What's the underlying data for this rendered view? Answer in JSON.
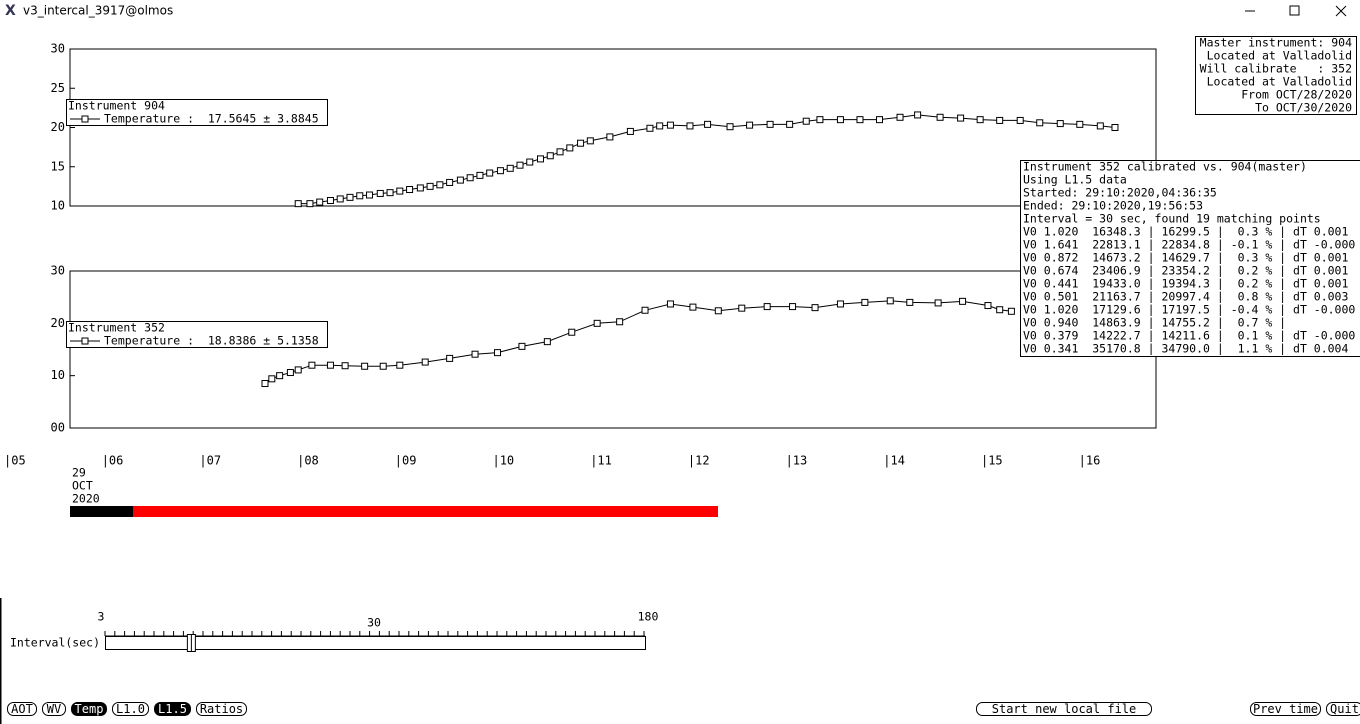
{
  "window": {
    "title": "v3_intercal_3917@olmos"
  },
  "charts": [
    {
      "type": "line",
      "legend_title": "Instrument 904",
      "legend_entry": "Temperature :  17.5645 ± 3.8845",
      "ylim": [
        10,
        30
      ],
      "yticks": [
        10,
        15,
        20,
        25,
        30
      ],
      "x": [
        7.95,
        8.07,
        8.17,
        8.28,
        8.38,
        8.48,
        8.58,
        8.68,
        8.79,
        8.89,
        8.99,
        9.09,
        9.2,
        9.3,
        9.4,
        9.5,
        9.61,
        9.71,
        9.81,
        9.91,
        10.02,
        10.12,
        10.22,
        10.32,
        10.43,
        10.53,
        10.63,
        10.73,
        10.84,
        10.94,
        11.14,
        11.35,
        11.55,
        11.65,
        11.76,
        11.96,
        12.14,
        12.37,
        12.57,
        12.78,
        12.98,
        13.15,
        13.29,
        13.5,
        13.7,
        13.9,
        14.11,
        14.29,
        14.52,
        14.73,
        14.93,
        15.13,
        15.34,
        15.54,
        15.75,
        15.95,
        16.16,
        16.31
      ],
      "values": [
        10.3,
        10.3,
        10.5,
        10.7,
        10.9,
        11.1,
        11.3,
        11.4,
        11.6,
        11.7,
        11.9,
        12.1,
        12.3,
        12.5,
        12.7,
        13.0,
        13.3,
        13.6,
        13.9,
        14.2,
        14.5,
        14.8,
        15.2,
        15.6,
        16.0,
        16.4,
        16.9,
        17.4,
        18.0,
        18.3,
        18.8,
        19.5,
        19.9,
        20.2,
        20.3,
        20.2,
        20.4,
        20.1,
        20.3,
        20.4,
        20.4,
        20.8,
        21.0,
        21.0,
        21.0,
        21.0,
        21.3,
        21.6,
        21.3,
        21.2,
        21.0,
        20.9,
        20.9,
        20.6,
        20.5,
        20.4,
        20.2,
        20.0
      ]
    },
    {
      "type": "line",
      "legend_title": "Instrument 352",
      "legend_entry": "Temperature :  18.8386 ± 5.1358",
      "ylim": [
        0,
        30
      ],
      "yticks": [
        {
          "value": 0,
          "label": "00"
        },
        10,
        20,
        30
      ],
      "x": [
        7.61,
        7.68,
        7.76,
        7.87,
        7.95,
        8.09,
        8.28,
        8.43,
        8.63,
        8.82,
        8.99,
        9.25,
        9.5,
        9.76,
        9.99,
        10.24,
        10.5,
        10.75,
        11.01,
        11.24,
        11.5,
        11.76,
        11.99,
        12.25,
        12.49,
        12.75,
        13.01,
        13.24,
        13.5,
        13.75,
        14.01,
        14.21,
        14.5,
        14.75,
        15.01,
        15.13,
        15.25
      ],
      "values": [
        8.5,
        9.4,
        10.0,
        10.6,
        11.1,
        12.0,
        12.0,
        11.9,
        11.8,
        11.8,
        12.0,
        12.6,
        13.3,
        14.1,
        14.4,
        15.6,
        16.5,
        18.3,
        20.0,
        20.3,
        22.5,
        23.7,
        23.1,
        22.4,
        22.9,
        23.2,
        23.2,
        23.0,
        23.7,
        24.0,
        24.3,
        24.0,
        23.9,
        24.2,
        23.4,
        22.6,
        22.3
      ]
    }
  ],
  "time_axis": {
    "xlim": [
      5,
      16.73
    ],
    "xticks": [
      {
        "value": 5,
        "label": "|05"
      },
      {
        "value": 6,
        "label": "|06"
      },
      {
        "value": 7,
        "label": "|07"
      },
      {
        "value": 8,
        "label": "|08"
      },
      {
        "value": 9,
        "label": "|09"
      },
      {
        "value": 10,
        "label": "|10"
      },
      {
        "value": 11,
        "label": "|11"
      },
      {
        "value": 12,
        "label": "|12"
      },
      {
        "value": 13,
        "label": "|13"
      },
      {
        "value": 14,
        "label": "|14"
      },
      {
        "value": 15,
        "label": "|15"
      },
      {
        "value": 16,
        "label": "|16"
      }
    ],
    "date": [
      "29",
      "OCT",
      "2020"
    ]
  },
  "master_box": [
    "Master instrument: 904",
    "Located at Valladolid",
    "Will calibrate   : 352",
    "Located at Valladolid",
    "From OCT/28/2020",
    "To OCT/30/2020"
  ],
  "calibration_box": [
    "Instrument 352 calibrated vs. 904(master)",
    "Using L1.5 data",
    "Started: 29:10:2020,04:36:35",
    "Ended: 29:10:2020,19:56:53",
    "Interval = 30 sec, found 19 matching points",
    "V0 1.020  16348.3 | 16299.5 |  0.3 % | dT 0.001",
    "V0 1.641  22813.1 | 22834.8 | -0.1 % | dT -0.000",
    "V0 0.872  14673.2 | 14629.7 |  0.3 % | dT 0.001",
    "V0 0.674  23406.9 | 23354.2 |  0.2 % | dT 0.001",
    "V0 0.441  19433.0 | 19394.3 |  0.2 % | dT 0.001",
    "V0 0.501  21163.7 | 20997.4 |  0.8 % | dT 0.003",
    "V0 1.020  17129.6 | 17197.5 | -0.4 % | dT -0.000",
    "V0 0.940  14863.9 | 14755.2 |  0.7 % |",
    "V0 0.379  14222.7 | 14211.6 |  0.1 % | dT -0.000",
    "V0 0.341  35170.8 | 34790.0 |  1.1 % | dT 0.004"
  ],
  "slider": {
    "label": "Interval(sec)",
    "min": 3,
    "max": 180,
    "mid_label": 30,
    "value": 30
  },
  "buttons": [
    {
      "label": "AOT",
      "active": false
    },
    {
      "label": "WV",
      "active": false
    },
    {
      "label": "Temp",
      "active": true
    },
    {
      "label": "L1.0",
      "active": false
    },
    {
      "label": "L1.5",
      "active": true
    },
    {
      "label": "Ratios",
      "active": false
    },
    {
      "label": "Start new local file",
      "active": false
    },
    {
      "label": "Prev time",
      "active": false
    },
    {
      "label": "Quit",
      "active": false
    }
  ]
}
